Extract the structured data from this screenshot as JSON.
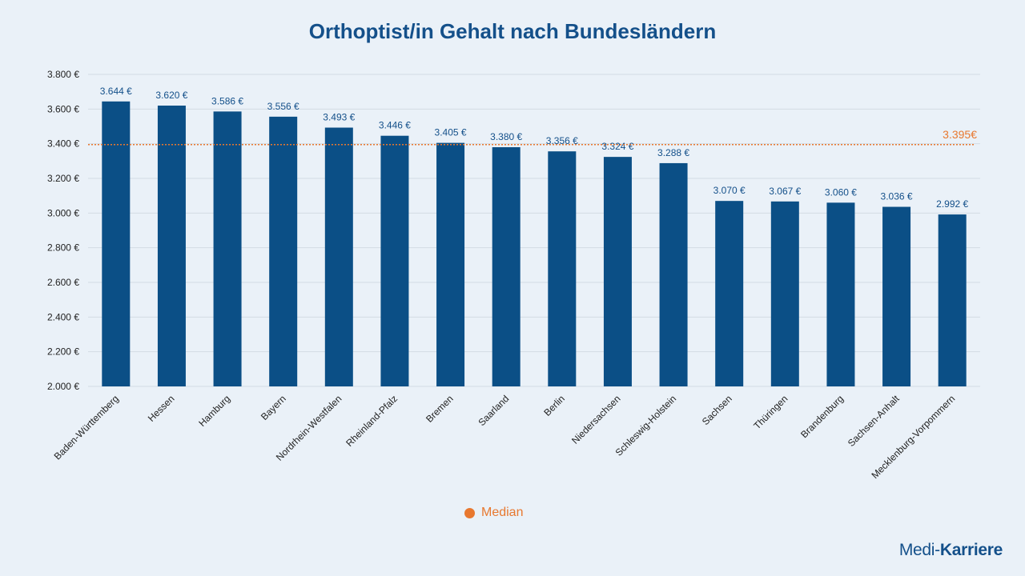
{
  "colors": {
    "bar": "#0b4f86",
    "median": "#e8782f",
    "label": "#14508a",
    "text": "#222222",
    "grid": "#d3dbe3"
  },
  "chart_data": {
    "type": "bar",
    "title": "Orthoptist/in Gehalt nach Bundesländern",
    "xlabel": "",
    "ylabel": "",
    "ylim": [
      2000,
      3800
    ],
    "yticks": [
      2000,
      2200,
      2400,
      2600,
      2800,
      3000,
      3200,
      3400,
      3600,
      3800
    ],
    "ytick_labels": [
      "2.000 €",
      "2.200 €",
      "2.400 €",
      "2.600 €",
      "2.800 €",
      "3.000 €",
      "3.200 €",
      "3.400 €",
      "3.600 €",
      "3.800 €"
    ],
    "grid": true,
    "categories": [
      "Baden-Württemberg",
      "Hessen",
      "Hamburg",
      "Bayern",
      "Nordrhein-Westfalen",
      "Rheinland-Pfalz",
      "Bremen",
      "Saarland",
      "Berlin",
      "Niedersachsen",
      "Schleswig-Holstein",
      "Sachsen",
      "Thüringen",
      "Brandenburg",
      "Sachsen-Anhalt",
      "Mecklenburg-Vorpommern"
    ],
    "values": [
      3644,
      3620,
      3586,
      3556,
      3493,
      3446,
      3405,
      3380,
      3356,
      3324,
      3288,
      3070,
      3067,
      3060,
      3036,
      2992
    ],
    "value_labels": [
      "3.644 €",
      "3.620 €",
      "3.586 €",
      "3.556 €",
      "3.493 €",
      "3.446 €",
      "3.405 €",
      "3.380 €",
      "3.356 €",
      "3.324 €",
      "3.288 €",
      "3.070 €",
      "3.067 €",
      "3.060 €",
      "3.036 €",
      "2.992 €"
    ],
    "median": {
      "name": "Median",
      "value": 3395,
      "label": "3.395€"
    },
    "legend": {
      "position": "bottom",
      "entries": [
        "Median"
      ]
    }
  },
  "brand": {
    "part1": "Medi-",
    "part2": "Karriere"
  }
}
